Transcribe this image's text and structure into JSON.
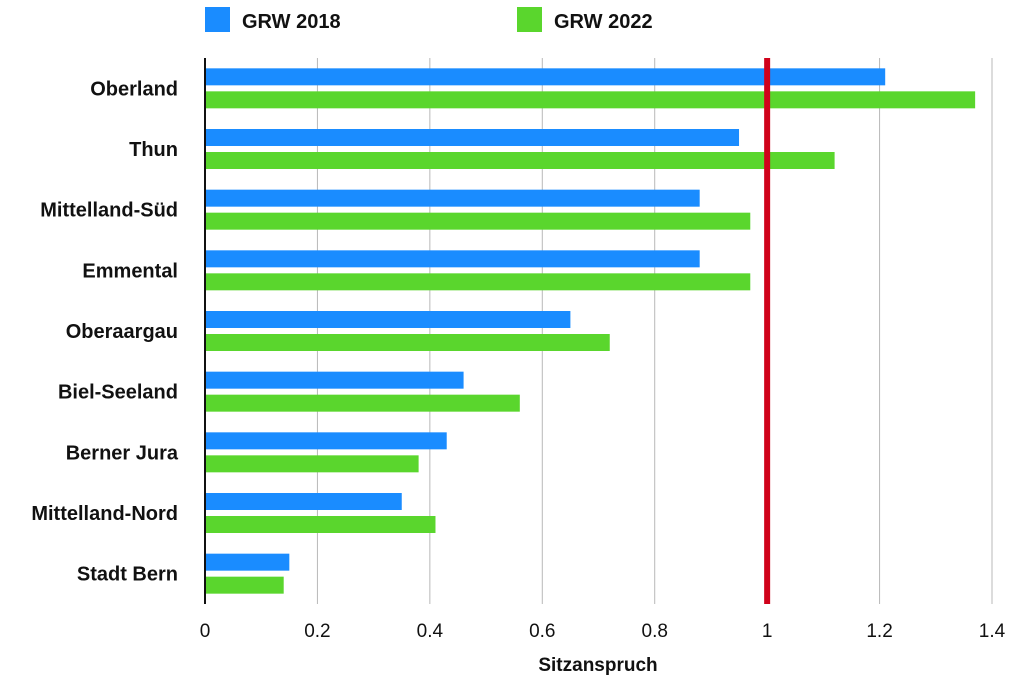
{
  "chart_data": {
    "type": "bar",
    "orientation": "horizontal",
    "categories": [
      "Oberland",
      "Thun",
      "Mittelland-Süd",
      "Emmental",
      "Oberaargau",
      "Biel-Seeland",
      "Berner Jura",
      "Mittelland-Nord",
      "Stadt Bern"
    ],
    "series": [
      {
        "name": "GRW 2018",
        "color": "#1a8cff",
        "values": [
          1.21,
          0.95,
          0.88,
          0.88,
          0.65,
          0.46,
          0.43,
          0.35,
          0.15
        ]
      },
      {
        "name": "GRW 2022",
        "color": "#5ad62d",
        "values": [
          1.37,
          1.12,
          0.97,
          0.97,
          0.72,
          0.56,
          0.38,
          0.41,
          0.14
        ]
      }
    ],
    "xlabel": "Sitzanspruch",
    "ylabel": "",
    "xlim": [
      0,
      1.4
    ],
    "xticks": [
      "0",
      "0.2",
      "0.4",
      "0.6",
      "0.8",
      "1",
      "1.2",
      "1.4"
    ],
    "reference_line": {
      "value": 1,
      "color": "#d0021b"
    },
    "grid": "vertical",
    "legend": "top"
  }
}
